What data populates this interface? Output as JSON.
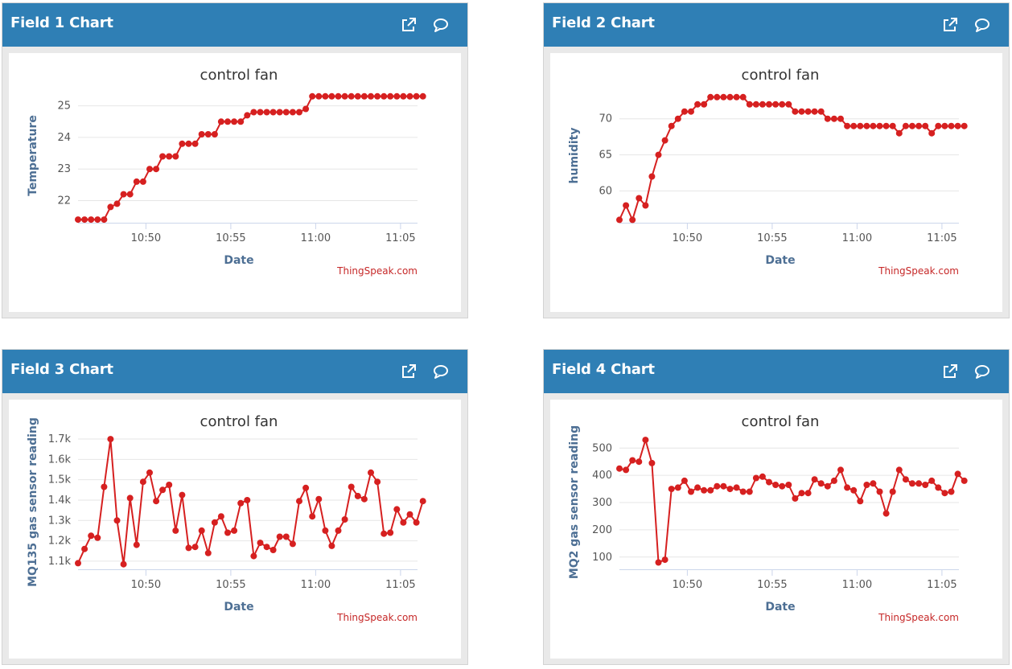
{
  "panels": [
    {
      "title": "Field 1 Chart"
    },
    {
      "title": "Field 2 Chart"
    },
    {
      "title": "Field 3 Chart"
    },
    {
      "title": "Field 4 Chart"
    }
  ],
  "colors": {
    "header": "#2f7fb5",
    "series": "#d62020",
    "axis_label": "#4d6f94",
    "credit": "#c62828"
  },
  "icons": {
    "popout": "external-link-icon",
    "comment": "comment-icon"
  },
  "chart_data": [
    {
      "type": "line",
      "title": "control fan",
      "xlabel": "Date",
      "ylabel": "Temperature",
      "credit": "ThingSpeak.com",
      "x_range": [
        "10:46",
        "11:06"
      ],
      "x_ticks": [
        "10:50",
        "10:55",
        "11:00",
        "11:05"
      ],
      "x_tick_values": [
        "10:50",
        "10:55",
        "11:00",
        "11:05"
      ],
      "ylim": [
        21.3,
        25.55
      ],
      "y_ticks": [
        22,
        23,
        24,
        25
      ],
      "y_tick_labels": [
        "22",
        "23",
        "24",
        "25"
      ],
      "grid": true,
      "legend": "none",
      "x": [
        "10:46:00",
        "10:46:23",
        "10:46:46",
        "10:47:09",
        "10:47:32",
        "10:47:55",
        "10:48:18",
        "10:48:41",
        "10:49:04",
        "10:49:27",
        "10:49:50",
        "10:50:13",
        "10:50:36",
        "10:50:59",
        "10:51:22",
        "10:51:45",
        "10:52:08",
        "10:52:31",
        "10:52:54",
        "10:53:17",
        "10:53:40",
        "10:54:03",
        "10:54:26",
        "10:54:49",
        "10:55:12",
        "10:55:35",
        "10:55:58",
        "10:56:21",
        "10:56:44",
        "10:57:07",
        "10:57:30",
        "10:57:53",
        "10:58:16",
        "10:58:39",
        "10:59:02",
        "10:59:25",
        "10:59:48",
        "11:00:11",
        "11:00:34",
        "11:00:57",
        "11:01:20",
        "11:01:43",
        "11:02:06",
        "11:02:29",
        "11:02:52",
        "11:03:15",
        "11:03:38",
        "11:04:01",
        "11:04:24",
        "11:04:47",
        "11:05:10",
        "11:05:33",
        "11:05:56",
        "11:06:19"
      ],
      "values": [
        21.4,
        21.4,
        21.4,
        21.4,
        21.4,
        21.8,
        21.9,
        22.2,
        22.2,
        22.6,
        22.6,
        23.0,
        23.0,
        23.4,
        23.4,
        23.4,
        23.8,
        23.8,
        23.8,
        24.1,
        24.1,
        24.1,
        24.5,
        24.5,
        24.5,
        24.5,
        24.7,
        24.8,
        24.8,
        24.8,
        24.8,
        24.8,
        24.8,
        24.8,
        24.8,
        24.9,
        25.3,
        25.3,
        25.3,
        25.3,
        25.3,
        25.3,
        25.3,
        25.3,
        25.3,
        25.3,
        25.3,
        25.3,
        25.3,
        25.3,
        25.3,
        25.3,
        25.3,
        25.3
      ]
    },
    {
      "type": "line",
      "title": "control fan",
      "xlabel": "Date",
      "ylabel": "humidity",
      "credit": "ThingSpeak.com",
      "x_range": [
        "10:46",
        "11:06"
      ],
      "x_ticks": [
        "10:50",
        "10:55",
        "11:00",
        "11:05"
      ],
      "x_tick_values": [
        "10:50",
        "10:55",
        "11:00",
        "11:05"
      ],
      "ylim": [
        55.6,
        74.2
      ],
      "y_ticks": [
        60,
        65,
        70
      ],
      "y_tick_labels": [
        "60",
        "65",
        "70"
      ],
      "grid": true,
      "legend": "none",
      "x": [
        "10:46:00",
        "10:46:23",
        "10:46:46",
        "10:47:09",
        "10:47:32",
        "10:47:55",
        "10:48:18",
        "10:48:41",
        "10:49:04",
        "10:49:27",
        "10:49:50",
        "10:50:13",
        "10:50:36",
        "10:50:59",
        "10:51:22",
        "10:51:45",
        "10:52:08",
        "10:52:31",
        "10:52:54",
        "10:53:17",
        "10:53:40",
        "10:54:03",
        "10:54:26",
        "10:54:49",
        "10:55:12",
        "10:55:35",
        "10:55:58",
        "10:56:21",
        "10:56:44",
        "10:57:07",
        "10:57:30",
        "10:57:53",
        "10:58:16",
        "10:58:39",
        "10:59:02",
        "10:59:25",
        "10:59:48",
        "11:00:11",
        "11:00:34",
        "11:00:57",
        "11:01:20",
        "11:01:43",
        "11:02:06",
        "11:02:29",
        "11:02:52",
        "11:03:15",
        "11:03:38",
        "11:04:01",
        "11:04:24",
        "11:04:47",
        "11:05:10",
        "11:05:33",
        "11:05:56",
        "11:06:19"
      ],
      "values": [
        56,
        58,
        56,
        59,
        58,
        62,
        65,
        67,
        69,
        70,
        71,
        71,
        72,
        72,
        73,
        73,
        73,
        73,
        73,
        73,
        72,
        72,
        72,
        72,
        72,
        72,
        72,
        71,
        71,
        71,
        71,
        71,
        70,
        70,
        70,
        69,
        69,
        69,
        69,
        69,
        69,
        69,
        69,
        68,
        69,
        69,
        69,
        69,
        68,
        69,
        69,
        69,
        69,
        69
      ]
    },
    {
      "type": "line",
      "title": "control fan",
      "xlabel": "Date",
      "ylabel": "MQ135 gas sensor reading",
      "credit": "ThingSpeak.com",
      "x_range": [
        "10:46",
        "11:06"
      ],
      "x_ticks": [
        "10:50",
        "10:55",
        "11:00",
        "11:05"
      ],
      "x_tick_values": [
        "10:50",
        "10:55",
        "11:00",
        "11:05"
      ],
      "ylim": [
        1060,
        1720
      ],
      "y_ticks": [
        1100,
        1200,
        1300,
        1400,
        1500,
        1600,
        1700
      ],
      "y_tick_labels": [
        "1.1k",
        "1.2k",
        "1.3k",
        "1.4k",
        "1.5k",
        "1.6k",
        "1.7k"
      ],
      "grid": true,
      "legend": "none",
      "x": [
        "10:46:00",
        "10:46:23",
        "10:46:46",
        "10:47:09",
        "10:47:32",
        "10:47:55",
        "10:48:18",
        "10:48:41",
        "10:49:04",
        "10:49:27",
        "10:49:50",
        "10:50:13",
        "10:50:36",
        "10:50:59",
        "10:51:22",
        "10:51:45",
        "10:52:08",
        "10:52:31",
        "10:52:54",
        "10:53:17",
        "10:53:40",
        "10:54:03",
        "10:54:26",
        "10:54:49",
        "10:55:12",
        "10:55:35",
        "10:55:58",
        "10:56:21",
        "10:56:44",
        "10:57:07",
        "10:57:30",
        "10:57:53",
        "10:58:16",
        "10:58:39",
        "10:59:02",
        "10:59:25",
        "10:59:48",
        "11:00:11",
        "11:00:34",
        "11:00:57",
        "11:01:20",
        "11:01:43",
        "11:02:06",
        "11:02:29",
        "11:02:52",
        "11:03:15",
        "11:03:38",
        "11:04:01",
        "11:04:24",
        "11:04:47",
        "11:05:10",
        "11:05:33",
        "11:05:56",
        "11:06:19"
      ],
      "values": [
        1090,
        1160,
        1225,
        1215,
        1465,
        1700,
        1300,
        1085,
        1410,
        1180,
        1490,
        1535,
        1395,
        1450,
        1475,
        1250,
        1425,
        1165,
        1170,
        1250,
        1140,
        1290,
        1320,
        1240,
        1250,
        1385,
        1400,
        1125,
        1190,
        1170,
        1155,
        1220,
        1220,
        1185,
        1395,
        1460,
        1320,
        1405,
        1250,
        1175,
        1250,
        1305,
        1465,
        1420,
        1405,
        1535,
        1490,
        1235,
        1240,
        1355,
        1290,
        1330,
        1290,
        1395
      ]
    },
    {
      "type": "line",
      "title": "control fan",
      "xlabel": "Date",
      "ylabel": "MQ2 gas sensor reading",
      "credit": "ThingSpeak.com",
      "x_range": [
        "10:46",
        "11:06"
      ],
      "x_ticks": [
        "10:50",
        "10:55",
        "11:00",
        "11:05"
      ],
      "x_tick_values": [
        "10:50",
        "10:55",
        "11:00",
        "11:05"
      ],
      "ylim": [
        55,
        548
      ],
      "y_ticks": [
        100,
        200,
        300,
        400,
        500
      ],
      "y_tick_labels": [
        "100",
        "200",
        "300",
        "400",
        "500"
      ],
      "grid": true,
      "legend": "none",
      "x": [
        "10:46:00",
        "10:46:23",
        "10:46:46",
        "10:47:09",
        "10:47:32",
        "10:47:55",
        "10:48:18",
        "10:48:41",
        "10:49:04",
        "10:49:27",
        "10:49:50",
        "10:50:13",
        "10:50:36",
        "10:50:59",
        "10:51:22",
        "10:51:45",
        "10:52:08",
        "10:52:31",
        "10:52:54",
        "10:53:17",
        "10:53:40",
        "10:54:03",
        "10:54:26",
        "10:54:49",
        "10:55:12",
        "10:55:35",
        "10:55:58",
        "10:56:21",
        "10:56:44",
        "10:57:07",
        "10:57:30",
        "10:57:53",
        "10:58:16",
        "10:58:39",
        "10:59:02",
        "10:59:25",
        "10:59:48",
        "11:00:11",
        "11:00:34",
        "11:00:57",
        "11:01:20",
        "11:01:43",
        "11:02:06",
        "11:02:29",
        "11:02:52",
        "11:03:15",
        "11:03:38",
        "11:04:01",
        "11:04:24",
        "11:04:47",
        "11:05:10",
        "11:05:33",
        "11:05:56",
        "11:06:19"
      ],
      "values": [
        425,
        420,
        455,
        450,
        530,
        445,
        80,
        90,
        350,
        355,
        380,
        340,
        355,
        345,
        345,
        360,
        360,
        350,
        355,
        340,
        340,
        390,
        395,
        375,
        365,
        360,
        365,
        315,
        335,
        335,
        385,
        370,
        360,
        380,
        420,
        355,
        345,
        305,
        365,
        370,
        340,
        260,
        340,
        420,
        385,
        370,
        370,
        365,
        380,
        355,
        335,
        340,
        405,
        380
      ]
    }
  ]
}
